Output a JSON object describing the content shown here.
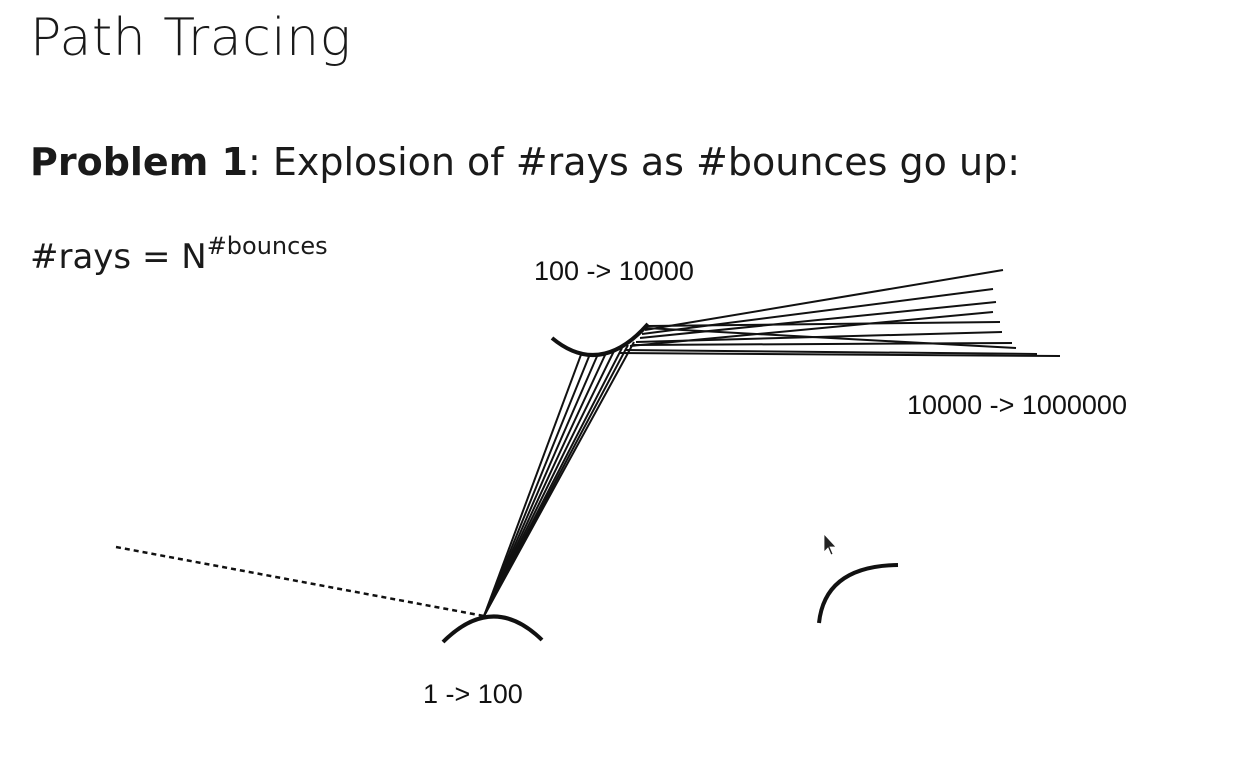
{
  "slide": {
    "title": "Path Tracing",
    "problem_label": "Problem 1",
    "problem_text": ": Explosion of #rays as #bounces go up:",
    "formula_base": "#rays = N",
    "formula_exponent": "#bounces"
  },
  "diagram": {
    "labels": {
      "bounce_1": "1 -> 100",
      "bounce_2": "100 -> 10000",
      "bounce_3": "10000 -> 1000000"
    }
  }
}
